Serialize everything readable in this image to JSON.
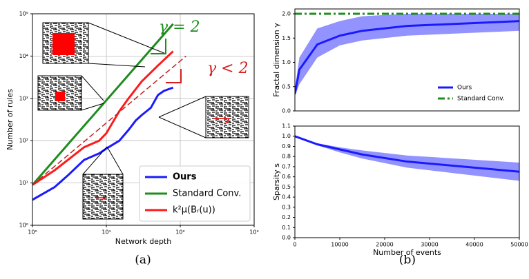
{
  "chart_data": [
    {
      "type": "line",
      "caption": "(a)",
      "xlabel": "Network depth",
      "ylabel": "Number of rules",
      "xscale": "log",
      "yscale": "log",
      "grid": true,
      "legend": "lower right",
      "xlim": [
        1,
        1000
      ],
      "xticks": [
        {
          "value": 1,
          "label": "10⁰"
        },
        {
          "value": 10,
          "label": "10¹"
        },
        {
          "value": 100,
          "label": "10²"
        },
        {
          "value": 1000,
          "label": "10³"
        }
      ],
      "ylim": [
        1,
        100000
      ],
      "yticks": [
        {
          "value": 1,
          "label": "10⁰"
        },
        {
          "value": 10,
          "label": "10¹"
        },
        {
          "value": 100,
          "label": "10²"
        },
        {
          "value": 1000,
          "label": "10³"
        },
        {
          "value": 10000,
          "label": "10⁴"
        },
        {
          "value": 100000,
          "label": "10⁵"
        }
      ],
      "annotations": [
        {
          "text": "γ = 2",
          "color": "#1e8c1e"
        },
        {
          "text": "γ < 2",
          "color": "#d62020"
        }
      ],
      "series": [
        {
          "name": "Ours",
          "color": "#1a1aff",
          "dash": "solid",
          "x": [
            1,
            2,
            3,
            5,
            8,
            10,
            15,
            20,
            25,
            30,
            40,
            50,
            60,
            80
          ],
          "values": [
            4,
            8,
            15,
            35,
            50,
            65,
            100,
            180,
            300,
            400,
            600,
            1200,
            1500,
            1800
          ]
        },
        {
          "name": "Standard Conv.",
          "color": "#1e8c1e",
          "dash": "solid",
          "x": [
            1,
            10,
            80
          ],
          "values": [
            9,
            900,
            57600
          ]
        },
        {
          "name": "k²μ(Bᵣ(u))",
          "color": "#ff1a1a",
          "dash": "solid",
          "x": [
            1,
            2,
            5,
            8,
            10,
            15,
            20,
            30,
            50,
            80
          ],
          "values": [
            9,
            20,
            70,
            100,
            150,
            500,
            1000,
            2500,
            6000,
            13000
          ]
        },
        {
          "color": "#c02020",
          "dash": "dashed",
          "x": [
            1,
            120
          ],
          "values": [
            9,
            10000
          ]
        }
      ]
    },
    {
      "type": "band",
      "ylabel": "Fractal dimension γ",
      "grid": false,
      "legend": "lower right",
      "xlim": [
        0,
        50000
      ],
      "ylim": [
        0,
        2.1
      ],
      "yticks": [
        {
          "value": 0,
          "label": "0.0"
        },
        {
          "value": 0.5,
          "label": "0.5"
        },
        {
          "value": 1,
          "label": "1.0"
        },
        {
          "value": 1.5,
          "label": "1.5"
        },
        {
          "value": 2,
          "label": "2.0"
        }
      ],
      "series": [
        {
          "name": "Ours",
          "color": "#1a1aff",
          "band_color": "#8080ff",
          "dash": "solid",
          "x": [
            0,
            1000,
            5000,
            10000,
            15000,
            25000,
            50000
          ],
          "values": [
            0.35,
            0.85,
            1.37,
            1.55,
            1.65,
            1.75,
            1.85
          ],
          "lower": [
            0.3,
            0.55,
            1.1,
            1.35,
            1.45,
            1.55,
            1.65
          ],
          "upper": [
            0.45,
            1.1,
            1.7,
            1.85,
            1.95,
            2.0,
            2.0
          ]
        },
        {
          "name": "Standard Conv.",
          "color": "#1e8c1e",
          "dash": "dashdot",
          "x": [
            0,
            50000
          ],
          "values": [
            2.0,
            2.0
          ]
        }
      ]
    },
    {
      "type": "band",
      "caption": "(b)",
      "xlabel": "Number of events",
      "ylabel": "Sparsity s",
      "grid": false,
      "xlim": [
        0,
        50000
      ],
      "xticks": [
        0,
        10000,
        20000,
        30000,
        40000,
        50000
      ],
      "ylim": [
        0,
        1.1
      ],
      "yticks": [
        {
          "value": 0,
          "label": "0.0"
        },
        {
          "value": 0.1,
          "label": "0.1"
        },
        {
          "value": 0.2,
          "label": "0.2"
        },
        {
          "value": 0.3,
          "label": "0.3"
        },
        {
          "value": 0.4,
          "label": "0.4"
        },
        {
          "value": 0.5,
          "label": "0.5"
        },
        {
          "value": 0.6,
          "label": "0.6"
        },
        {
          "value": 0.7,
          "label": "0.7"
        },
        {
          "value": 0.8,
          "label": "0.8"
        },
        {
          "value": 0.9,
          "label": "0.9"
        },
        {
          "value": 1,
          "label": "1.0"
        },
        {
          "value": 1.1,
          "label": "1.1"
        }
      ],
      "series": [
        {
          "name": "Ours",
          "color": "#1a1aff",
          "band_color": "#8080ff",
          "dash": "solid",
          "x": [
            0,
            5000,
            10000,
            15000,
            25000,
            50000
          ],
          "values": [
            1.0,
            0.92,
            0.87,
            0.82,
            0.75,
            0.65
          ],
          "lower": [
            1.0,
            0.91,
            0.84,
            0.78,
            0.69,
            0.56
          ],
          "upper": [
            1.0,
            0.93,
            0.89,
            0.86,
            0.81,
            0.74
          ]
        }
      ]
    }
  ]
}
